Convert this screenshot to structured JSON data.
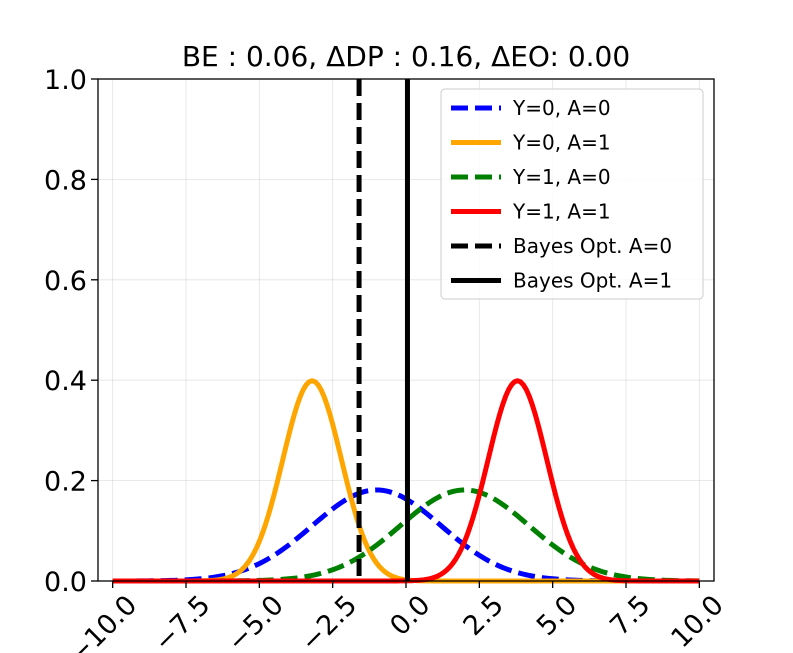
{
  "chart_data": {
    "type": "line",
    "title": "BE : 0.06, ΔDP : 0.16, ΔEO: 0.00",
    "xlabel": "",
    "ylabel": "",
    "xlim": [
      -10.5,
      10.5
    ],
    "ylim": [
      0.0,
      1.0
    ],
    "x_ticks": [
      -10.0,
      -7.5,
      -5.0,
      -2.5,
      0.0,
      2.5,
      5.0,
      7.5,
      10.0
    ],
    "x_tick_labels": [
      "−10.0",
      "−7.5",
      "−5.0",
      "−2.5",
      "0.0",
      "2.5",
      "5.0",
      "7.5",
      "10.0"
    ],
    "y_ticks": [
      0.0,
      0.2,
      0.4,
      0.6,
      0.8,
      1.0
    ],
    "y_tick_labels": [
      "0.0",
      "0.2",
      "0.4",
      "0.6",
      "0.8",
      "1.0"
    ],
    "grid": true,
    "legend_position": "top-right",
    "x_sample": {
      "start": -10.0,
      "end": 10.0,
      "step": 0.1
    },
    "series": [
      {
        "name": "Y=0, A=0",
        "color": "#0000ff",
        "style": "dashed",
        "distribution": "normal",
        "mean": -1.0,
        "std": 2.2
      },
      {
        "name": "Y=0, A=1",
        "color": "#ffa500",
        "style": "solid",
        "distribution": "normal",
        "mean": -3.2,
        "std": 1.0
      },
      {
        "name": "Y=1, A=0",
        "color": "#008000",
        "style": "dashed",
        "distribution": "normal",
        "mean": 2.0,
        "std": 2.2
      },
      {
        "name": "Y=1, A=1",
        "color": "#ff0000",
        "style": "solid",
        "distribution": "normal",
        "mean": 3.8,
        "std": 1.0
      }
    ],
    "vlines": [
      {
        "name": "Bayes Opt. A=0",
        "x": -1.6,
        "color": "#000000",
        "style": "dashed"
      },
      {
        "name": "Bayes Opt. A=1",
        "x": 0.05,
        "color": "#000000",
        "style": "solid"
      }
    ]
  }
}
